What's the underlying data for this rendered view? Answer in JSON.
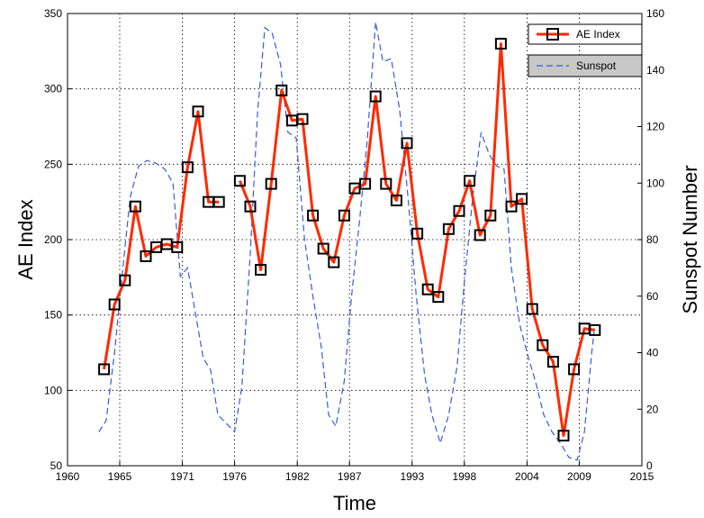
{
  "chart_data": {
    "type": "line",
    "xlabel": "Time",
    "ylabel": "AE Index",
    "ylabel_right": "Sunspot Number",
    "xlim": [
      1960,
      2015
    ],
    "ylim": [
      50,
      350
    ],
    "ylim_right": [
      0,
      160
    ],
    "x_ticks": [
      1960,
      1965,
      1971,
      1976,
      1982,
      1987,
      1993,
      1998,
      2004,
      2009,
      2015
    ],
    "y_ticks": [
      50,
      100,
      150,
      200,
      250,
      300,
      350
    ],
    "y_ticks_right": [
      0,
      20,
      40,
      60,
      80,
      100,
      120,
      140,
      160
    ],
    "grid": true,
    "legend_position": "top-right",
    "series": [
      {
        "name": "AE Index",
        "axis": "left",
        "color": "#ff2a00",
        "marker": "square",
        "x": [
          1963.5,
          1964.5,
          1965.5,
          1966.5,
          1967.5,
          1968.5,
          1969.5,
          1970.5,
          1971.5,
          1972.5,
          1973.5,
          1974.5,
          1976.5,
          1977.5,
          1978.5,
          1979.5,
          1980.5,
          1981.5,
          1982.5,
          1983.5,
          1984.5,
          1985.5,
          1986.5,
          1987.5,
          1988.5,
          1989.5,
          1990.5,
          1991.5,
          1992.5,
          1993.5,
          1994.5,
          1995.5,
          1996.5,
          1997.5,
          1998.5,
          1999.5,
          2000.5,
          2001.5,
          2002.5,
          2003.5,
          2004.5,
          2005.5,
          2006.5,
          2007.5,
          2008.5,
          2009.5,
          2010.5
        ],
        "y": [
          114,
          157,
          173,
          222,
          189,
          195,
          197,
          195,
          248,
          285,
          225,
          225,
          239,
          222,
          180,
          237,
          299,
          279,
          280,
          216,
          194,
          185,
          216,
          234,
          237,
          295,
          237,
          226,
          264,
          204,
          167,
          162,
          207,
          219,
          239,
          203,
          216,
          330,
          222,
          227,
          154,
          130,
          119,
          70,
          114,
          141,
          140
        ],
        "segment_breaks_after": [
          1974.5
        ]
      },
      {
        "name": "Sunspot",
        "axis": "right",
        "color": "#3a5bd9",
        "style": "dashed",
        "x": [
          1963.0,
          1963.7,
          1964.5,
          1965.3,
          1966.0,
          1966.8,
          1967.6,
          1968.5,
          1969.3,
          1970.1,
          1970.8,
          1971.5,
          1972.2,
          1973.0,
          1973.7,
          1974.4,
          1975.2,
          1976.0,
          1976.7,
          1977.5,
          1978.2,
          1978.9,
          1979.6,
          1980.4,
          1981.1,
          1981.9,
          1982.7,
          1983.5,
          1984.3,
          1985.0,
          1985.7,
          1986.5,
          1987.2,
          1988.0,
          1988.7,
          1989.5,
          1990.2,
          1991.0,
          1991.8,
          1992.6,
          1993.4,
          1994.2,
          1994.9,
          1995.7,
          1996.5,
          1997.3,
          1998.0,
          1998.8,
          1999.6,
          2000.4,
          2001.1,
          2001.8,
          2002.5,
          2003.3,
          2004.0,
          2004.8,
          2005.6,
          2006.4,
          2007.2,
          2008.0,
          2008.8,
          2009.5,
          2010.2,
          2010.5
        ],
        "y": [
          12,
          16,
          40,
          70,
          95,
          106,
          108,
          107,
          105,
          100,
          67,
          70,
          55,
          38,
          34,
          18,
          15,
          12,
          28,
          75,
          125,
          155,
          153,
          142,
          118,
          116,
          80,
          60,
          42,
          18,
          14,
          30,
          60,
          88,
          115,
          157,
          143,
          144,
          126,
          95,
          60,
          32,
          18,
          8,
          18,
          35,
          65,
          95,
          118,
          110,
          106,
          105,
          70,
          50,
          40,
          30,
          18,
          12,
          8,
          3,
          2,
          12,
          40,
          50
        ]
      }
    ]
  }
}
